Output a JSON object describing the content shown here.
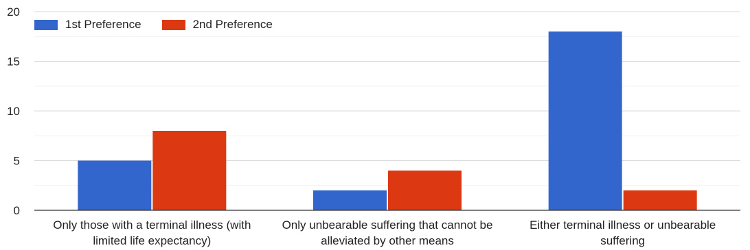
{
  "chart_data": {
    "type": "bar",
    "categories": [
      [
        "Only those with a terminal illness (with",
        "limited life expectancy)"
      ],
      [
        "Only unbearable suffering that cannot be",
        "alleviated by other means"
      ],
      [
        "Either terminal illness or unbearable",
        "suffering"
      ]
    ],
    "series": [
      {
        "name": "1st Preference",
        "color": "#3366CC",
        "values": [
          5,
          2,
          18
        ]
      },
      {
        "name": "2nd Preference",
        "color": "#DC3912",
        "values": [
          8,
          4,
          2
        ]
      }
    ],
    "ylim": [
      0,
      20
    ],
    "yticks": [
      "0",
      "5",
      "10",
      "15",
      "20"
    ],
    "grid": true,
    "legend": "top-left"
  }
}
